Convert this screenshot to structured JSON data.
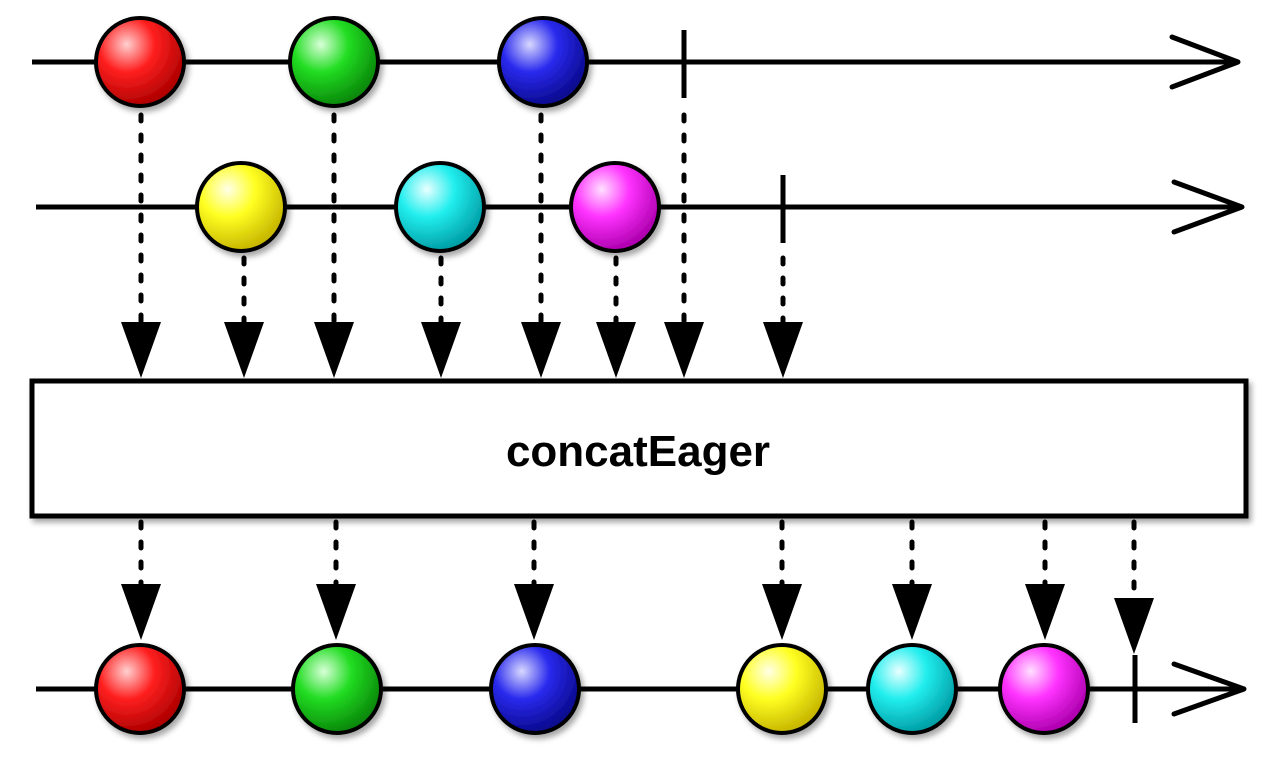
{
  "operator": {
    "label": "concatEager"
  },
  "colors": {
    "red": "#ff2020",
    "green": "#22dd22",
    "blue": "#2a2aee",
    "yellow": "#ffff22",
    "cyan": "#22eeee",
    "magenta": "#ff33ff"
  },
  "source_1": {
    "items": [
      "red",
      "green",
      "blue"
    ],
    "completed": true
  },
  "source_2": {
    "items": [
      "yellow",
      "cyan",
      "magenta"
    ],
    "completed": true
  },
  "output": {
    "items": [
      "red",
      "green",
      "blue",
      "yellow",
      "cyan",
      "magenta"
    ],
    "completed": true
  }
}
